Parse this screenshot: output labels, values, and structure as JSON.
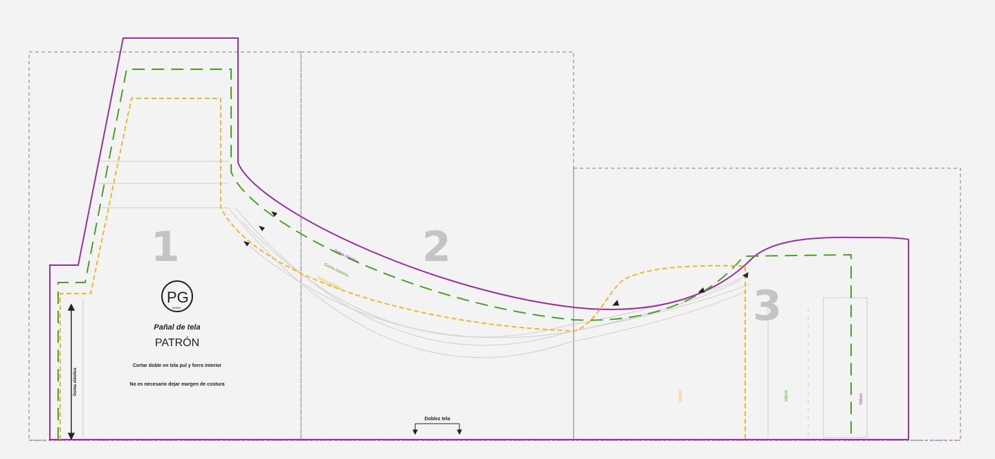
{
  "colors": {
    "background": "#f3f3f3",
    "outer_outline": "#9a2fa0",
    "middle_outline": "#4aa12a",
    "inner_outline": "#f0b630",
    "page_border": "#7d7d7d",
    "guide": "#cfcfcf",
    "section_number": "#c4c4c4"
  },
  "sections": {
    "one": "1",
    "two": "2",
    "three": "3"
  },
  "logo": {
    "monogram": "PG",
    "tagline": "MAMÁ"
  },
  "title": "Pañal de tela",
  "subtitle": "PATRÓN",
  "notes": {
    "cut": "Cortar doble en tela pul y forro interior",
    "seam": "No es necesario dejar margen de costura"
  },
  "labels": {
    "elastic_vertical": "Goma elástica",
    "elastic_purple": "Goma elástica",
    "elastic_green": "Goma elástica",
    "elastic_yellow": "Goma elástica",
    "fold": "Doblez tela",
    "velcro_yellow": "Velcro",
    "velcro_green": "Velcro",
    "velcro_purple": "Velcro"
  }
}
